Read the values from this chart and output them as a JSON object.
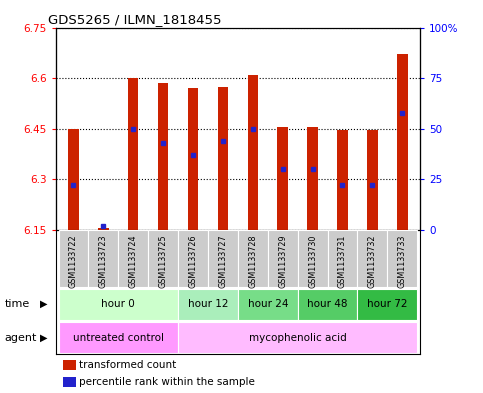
{
  "title": "GDS5265 / ILMN_1818455",
  "samples": [
    "GSM1133722",
    "GSM1133723",
    "GSM1133724",
    "GSM1133725",
    "GSM1133726",
    "GSM1133727",
    "GSM1133728",
    "GSM1133729",
    "GSM1133730",
    "GSM1133731",
    "GSM1133732",
    "GSM1133733"
  ],
  "bar_bottom": 6.15,
  "bar_tops": [
    6.45,
    6.155,
    6.6,
    6.585,
    6.57,
    6.575,
    6.61,
    6.455,
    6.455,
    6.445,
    6.445,
    6.67
  ],
  "percentile_values": [
    22,
    2,
    50,
    43,
    37,
    44,
    50,
    30,
    30,
    22,
    22,
    58
  ],
  "ylim_left": [
    6.15,
    6.75
  ],
  "ylim_right": [
    0,
    100
  ],
  "yticks_left": [
    6.15,
    6.3,
    6.45,
    6.6,
    6.75
  ],
  "yticks_right": [
    0,
    25,
    50,
    75,
    100
  ],
  "ytick_labels_left": [
    "6.15",
    "6.3",
    "6.45",
    "6.6",
    "6.75"
  ],
  "ytick_labels_right": [
    "0",
    "25",
    "50",
    "75",
    "100%"
  ],
  "bar_color": "#cc2200",
  "dot_color": "#2222cc",
  "time_groups": [
    {
      "label": "hour 0",
      "start": 0,
      "end": 3,
      "color": "#ccffcc"
    },
    {
      "label": "hour 12",
      "start": 4,
      "end": 5,
      "color": "#aaeebb"
    },
    {
      "label": "hour 24",
      "start": 6,
      "end": 7,
      "color": "#77dd88"
    },
    {
      "label": "hour 48",
      "start": 8,
      "end": 9,
      "color": "#55cc66"
    },
    {
      "label": "hour 72",
      "start": 10,
      "end": 11,
      "color": "#33bb44"
    }
  ],
  "agent_groups": [
    {
      "label": "untreated control",
      "start": 0,
      "end": 3,
      "color": "#ff99ff"
    },
    {
      "label": "mycophenolic acid",
      "start": 4,
      "end": 11,
      "color": "#ffbbff"
    }
  ],
  "legend_red_label": "transformed count",
  "legend_blue_label": "percentile rank within the sample",
  "time_label": "time",
  "agent_label": "agent",
  "bar_width": 0.35,
  "figwidth": 4.83,
  "figheight": 3.93,
  "dpi": 100
}
